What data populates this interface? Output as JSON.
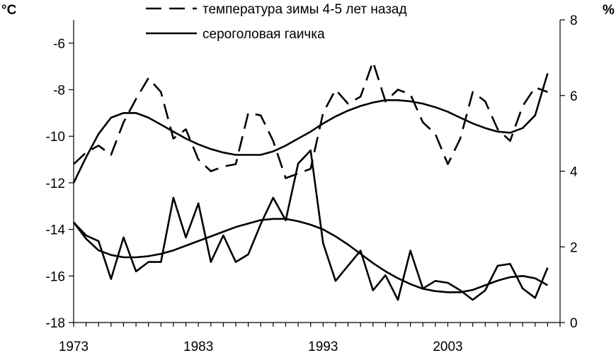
{
  "chart_data": {
    "type": "line",
    "title": "",
    "left_axis": {
      "unit": "°C",
      "ylim": [
        -18,
        -5
      ],
      "ticks": [
        -18,
        -16,
        -14,
        -12,
        -10,
        -8,
        -6
      ],
      "tick_labels": [
        "-18",
        "-16",
        "-14",
        "-12",
        "-10",
        "-8",
        "-6"
      ]
    },
    "right_axis": {
      "unit": "%",
      "ylim": [
        0,
        8
      ],
      "ticks": [
        0,
        2,
        4,
        6,
        8
      ],
      "tick_labels": [
        "0",
        "2",
        "4",
        "6",
        "8"
      ]
    },
    "x_axis": {
      "xlim": [
        1973,
        2012
      ],
      "tick_labels": [
        "1973",
        "1983",
        "1993",
        "2003"
      ],
      "tick_values": [
        1973,
        1983,
        1993,
        2003
      ]
    },
    "legend": {
      "position": "top",
      "entries": [
        "температура зимы 4-5 лет назад",
        "сероголовая гаичка"
      ]
    },
    "series": [
      {
        "name": "температура зимы 4-5 лет назад",
        "axis": "left",
        "style": "dashed",
        "x": [
          1973,
          1974,
          1975,
          1976,
          1977,
          1978,
          1979,
          1980,
          1981,
          1982,
          1983,
          1984,
          1985,
          1986,
          1987,
          1988,
          1989,
          1990,
          1991,
          1992,
          1993,
          1994,
          1995,
          1996,
          1997,
          1998,
          1999,
          2000,
          2001,
          2002,
          2003,
          2004,
          2005,
          2006,
          2007,
          2008,
          2009,
          2010,
          2011
        ],
        "y": [
          -11.2,
          -10.7,
          -10.4,
          -10.8,
          -9.4,
          -8.4,
          -7.5,
          -8.1,
          -10.1,
          -9.7,
          -11.0,
          -11.5,
          -11.3,
          -11.2,
          -9.0,
          -9.1,
          -10.2,
          -11.8,
          -11.6,
          -11.4,
          -9.0,
          -8.0,
          -8.6,
          -8.3,
          -6.8,
          -8.5,
          -8.0,
          -8.2,
          -9.4,
          -9.9,
          -11.2,
          -10.1,
          -8.1,
          -8.5,
          -9.7,
          -10.2,
          -8.7,
          -7.9,
          -8.1
        ]
      },
      {
        "name": "сероголовая гаичка",
        "axis": "right",
        "style": "solid",
        "x": [
          1973,
          1974,
          1975,
          1976,
          1977,
          1978,
          1979,
          1980,
          1981,
          1982,
          1983,
          1984,
          1985,
          1986,
          1987,
          1988,
          1989,
          1990,
          1991,
          1992,
          1993,
          1994,
          1995,
          1996,
          1997,
          1998,
          1999,
          2000,
          2001,
          2002,
          2003,
          2004,
          2005,
          2006,
          2007,
          2008,
          2009,
          2010,
          2011
        ],
        "y": [
          2.65,
          2.3,
          2.15,
          1.15,
          2.25,
          1.35,
          1.6,
          1.6,
          3.3,
          2.25,
          3.15,
          1.6,
          2.3,
          1.6,
          1.8,
          2.6,
          3.3,
          2.7,
          4.2,
          4.55,
          2.1,
          1.1,
          1.5,
          1.9,
          0.85,
          1.25,
          0.6,
          1.9,
          0.9,
          1.1,
          1.05,
          0.85,
          0.6,
          0.85,
          1.5,
          1.55,
          0.9,
          0.65,
          1.45
        ]
      },
      {
        "name": "",
        "axis": "left",
        "style": "solid",
        "x": [
          1973,
          1974,
          1975,
          1976,
          1977,
          1978,
          1979,
          1980,
          1981,
          1982,
          1983,
          1984,
          1985,
          1986,
          1987,
          1988,
          1989,
          1990,
          1991,
          1992,
          1993,
          1994,
          1995,
          1996,
          1997,
          1998,
          1999,
          2000,
          2001,
          2002,
          2003,
          2004,
          2005,
          2006,
          2007,
          2008,
          2009,
          2010,
          2011
        ],
        "y": [
          -12.0,
          -10.9,
          -9.9,
          -9.2,
          -9.0,
          -9.0,
          -9.2,
          -9.5,
          -9.8,
          -10.1,
          -10.35,
          -10.55,
          -10.7,
          -10.8,
          -10.8,
          -10.8,
          -10.65,
          -10.4,
          -10.1,
          -9.8,
          -9.45,
          -9.15,
          -8.9,
          -8.7,
          -8.55,
          -8.45,
          -8.45,
          -8.5,
          -8.6,
          -8.75,
          -8.95,
          -9.2,
          -9.45,
          -9.65,
          -9.8,
          -9.85,
          -9.65,
          -9.1,
          -7.3
        ]
      },
      {
        "name": "",
        "axis": "left",
        "style": "solid",
        "x": [
          1973,
          1974,
          1975,
          1976,
          1977,
          1978,
          1979,
          1980,
          1981,
          1982,
          1983,
          1984,
          1985,
          1986,
          1987,
          1988,
          1989,
          1990,
          1991,
          1992,
          1993,
          1994,
          1995,
          1996,
          1997,
          1998,
          1999,
          2000,
          2001,
          2002,
          2003,
          2004,
          2005,
          2006,
          2007,
          2008,
          2009,
          2010,
          2011
        ],
        "y": [
          -13.7,
          -14.4,
          -14.9,
          -15.1,
          -15.2,
          -15.2,
          -15.15,
          -15.05,
          -14.9,
          -14.7,
          -14.5,
          -14.3,
          -14.1,
          -13.9,
          -13.75,
          -13.6,
          -13.55,
          -13.55,
          -13.65,
          -13.8,
          -14.0,
          -14.3,
          -14.65,
          -15.05,
          -15.45,
          -15.8,
          -16.1,
          -16.35,
          -16.55,
          -16.65,
          -16.7,
          -16.7,
          -16.6,
          -16.4,
          -16.2,
          -16.05,
          -16.0,
          -16.1,
          -16.4
        ]
      }
    ]
  }
}
